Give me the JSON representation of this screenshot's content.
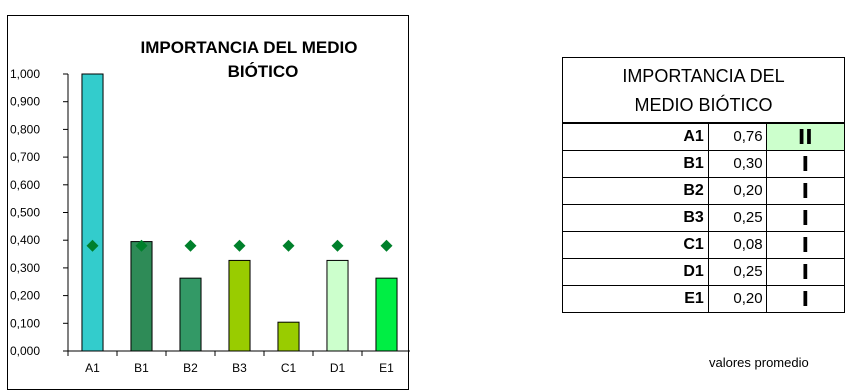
{
  "chart_data": {
    "type": "bar",
    "title": "IMPORTANCIA DEL MEDIO BIÓTICO",
    "title_lines": [
      "IMPORTANCIA DEL MEDIO",
      "BIÓTICO"
    ],
    "categories": [
      "A1",
      "B1",
      "B2",
      "B3",
      "C1",
      "D1",
      "E1"
    ],
    "series": [
      {
        "values": [
          1.0,
          0.395,
          0.263,
          0.327,
          0.104,
          0.327,
          0.263
        ]
      },
      {
        "type": "scatter",
        "marker": "diamond",
        "values": [
          0.38,
          0.38,
          0.38,
          0.38,
          0.38,
          0.38,
          0.38
        ]
      }
    ],
    "bar_colors": [
      "#33cccc",
      "#2e8b57",
      "#339966",
      "#99cc00",
      "#99cc00",
      "#ccffcc",
      "#00ee44"
    ],
    "marker_color": "#00802b",
    "ylim": [
      0,
      1.0
    ],
    "yticks": [
      "0,000",
      "0,100",
      "0,200",
      "0,300",
      "0,400",
      "0,500",
      "0,600",
      "0,700",
      "0,800",
      "0,900",
      "1,000"
    ],
    "xlabel": "",
    "ylabel": "",
    "grid": false,
    "legend": "none"
  },
  "table": {
    "title_lines": [
      "IMPORTANCIA DEL",
      "MEDIO BIÓTICO"
    ],
    "rows": [
      {
        "code": "A1",
        "value": "0,76",
        "class": "II"
      },
      {
        "code": "B1",
        "value": "0,30",
        "class": "I"
      },
      {
        "code": "B2",
        "value": "0,20",
        "class": "I"
      },
      {
        "code": "B3",
        "value": "0,25",
        "class": "I"
      },
      {
        "code": "C1",
        "value": "0,08",
        "class": "I"
      },
      {
        "code": "D1",
        "value": "0,25",
        "class": "I"
      },
      {
        "code": "E1",
        "value": "0,20",
        "class": "I"
      }
    ],
    "highlight_color": "#ccffcc"
  },
  "footnote": "valores promedio"
}
